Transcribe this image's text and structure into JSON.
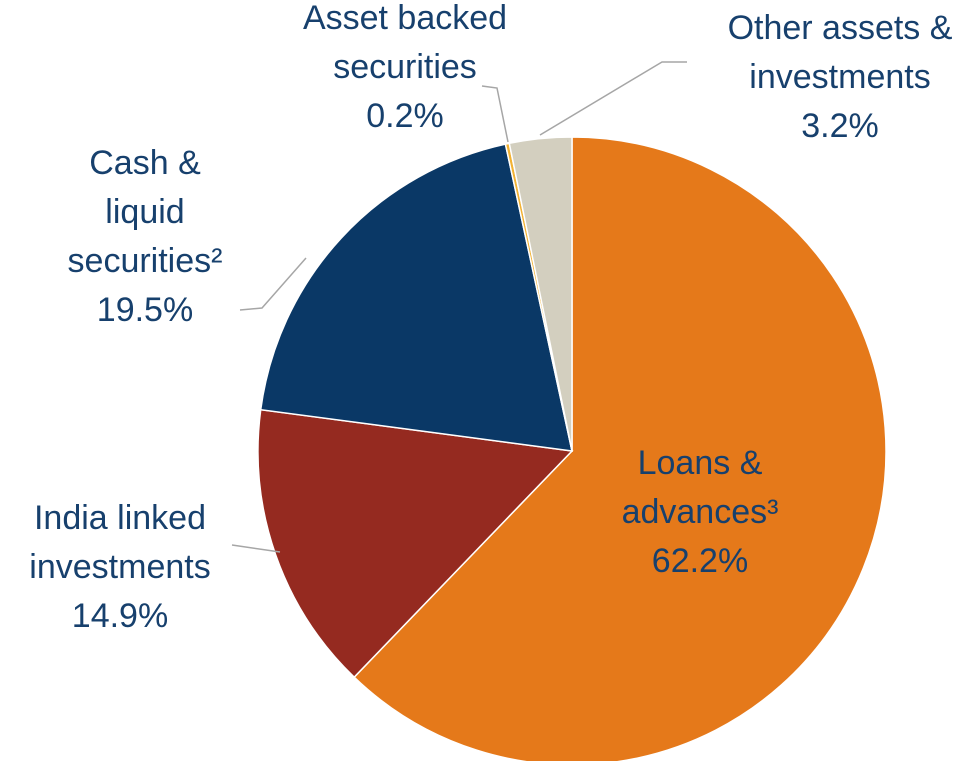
{
  "chart_data": {
    "type": "pie",
    "categories": [
      "Loans & advances³",
      "India linked investments",
      "Cash & liquid securities²",
      "Asset backed securities",
      "Other assets & investments"
    ],
    "values": [
      62.2,
      14.9,
      19.5,
      0.2,
      3.2
    ],
    "value_labels": [
      "62.2%",
      "14.9%",
      "19.5%",
      "0.2%",
      "3.2%"
    ],
    "colors": [
      "#e5791a",
      "#952a20",
      "#0a3866",
      "#f2b233",
      "#d3cfbf"
    ]
  }
}
